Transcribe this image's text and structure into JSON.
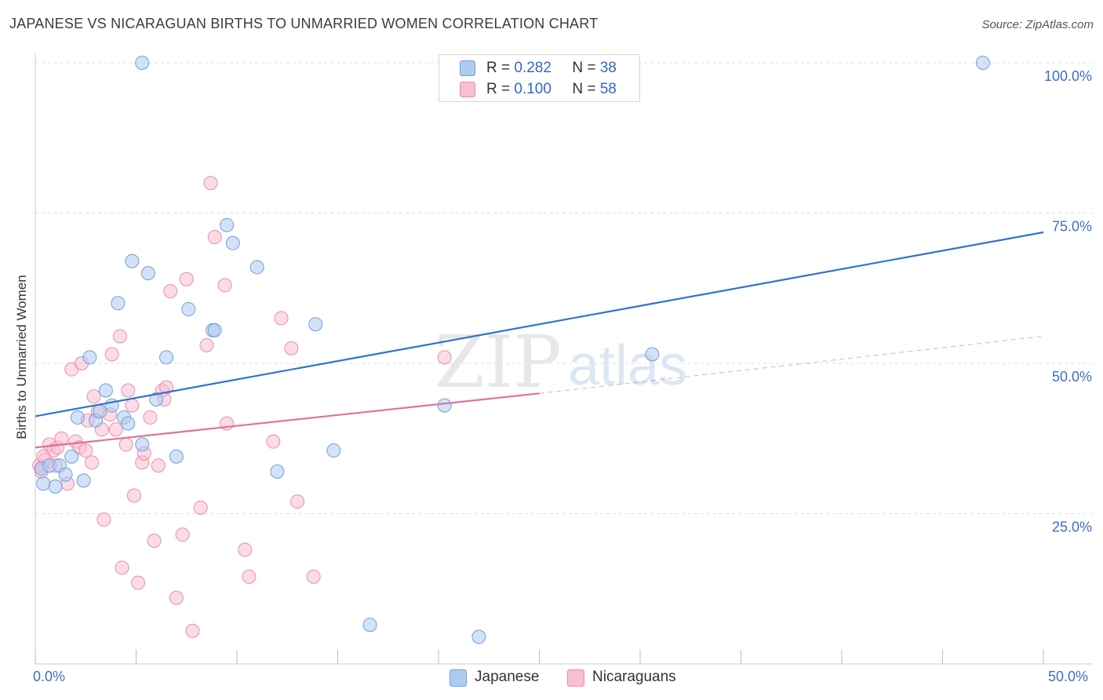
{
  "header": {
    "title": "JAPANESE VS NICARAGUAN BIRTHS TO UNMARRIED WOMEN CORRELATION CHART",
    "source": "Source: ZipAtlas.com"
  },
  "legend": {
    "rows": [
      {
        "r_label": "R =",
        "r_value": "0.282",
        "n_label": "N =",
        "n_value": "38"
      },
      {
        "r_label": "R =",
        "r_value": "0.100",
        "n_label": "N =",
        "n_value": "58"
      }
    ],
    "bottom": [
      "Japanese",
      "Nicaraguans"
    ]
  },
  "colors": {
    "japanese_fill": "#aecbf0",
    "japanese_stroke": "#6f9fdc",
    "japanese_line": "#2f73d0",
    "nicaraguan_fill": "#f7bfd0",
    "nicaraguan_stroke": "#e88fab",
    "nicaraguan_line": "#e0709a",
    "tick_label": "#3d6fc2",
    "grid": "#dddddd"
  },
  "watermark": {
    "zip": "ZIP",
    "atlas": "atlas"
  },
  "chart_data": {
    "type": "scatter",
    "title": "JAPANESE VS NICARAGUAN BIRTHS TO UNMARRIED WOMEN CORRELATION CHART",
    "xlabel": "",
    "ylabel": "Births to Unmarried Women",
    "xlim": [
      0,
      50
    ],
    "ylim": [
      0,
      100
    ],
    "x_tick_labels": [
      "0.0%",
      "50.0%"
    ],
    "y_ticks": [
      25,
      50,
      75,
      100
    ],
    "y_tick_labels": [
      "25.0%",
      "50.0%",
      "75.0%",
      "100.0%"
    ],
    "grid": true,
    "series": [
      {
        "name": "Japanese",
        "R": 0.282,
        "N": 38,
        "trend": {
          "x": [
            0,
            50
          ],
          "y": [
            41.2,
            71.8
          ]
        },
        "points": [
          {
            "x": 0.3,
            "y": 32.5
          },
          {
            "x": 0.4,
            "y": 30.0
          },
          {
            "x": 0.7,
            "y": 33.0
          },
          {
            "x": 1.0,
            "y": 29.5
          },
          {
            "x": 1.2,
            "y": 33.0
          },
          {
            "x": 1.5,
            "y": 31.5
          },
          {
            "x": 1.8,
            "y": 34.5
          },
          {
            "x": 2.1,
            "y": 41.0
          },
          {
            "x": 2.4,
            "y": 30.5
          },
          {
            "x": 2.7,
            "y": 51.0
          },
          {
            "x": 3.0,
            "y": 40.5
          },
          {
            "x": 3.2,
            "y": 42.0
          },
          {
            "x": 3.5,
            "y": 45.5
          },
          {
            "x": 3.8,
            "y": 43.0
          },
          {
            "x": 4.1,
            "y": 60.0
          },
          {
            "x": 4.4,
            "y": 41.0
          },
          {
            "x": 4.6,
            "y": 40.0
          },
          {
            "x": 4.8,
            "y": 67.0
          },
          {
            "x": 5.3,
            "y": 36.5
          },
          {
            "x": 5.6,
            "y": 65.0
          },
          {
            "x": 6.0,
            "y": 44.0
          },
          {
            "x": 6.5,
            "y": 51.0
          },
          {
            "x": 7.0,
            "y": 34.5
          },
          {
            "x": 7.6,
            "y": 59.0
          },
          {
            "x": 8.8,
            "y": 55.5
          },
          {
            "x": 9.5,
            "y": 73.0
          },
          {
            "x": 9.8,
            "y": 70.0
          },
          {
            "x": 11.0,
            "y": 66.0
          },
          {
            "x": 12.0,
            "y": 32.0
          },
          {
            "x": 13.9,
            "y": 56.5
          },
          {
            "x": 14.8,
            "y": 35.5
          },
          {
            "x": 16.6,
            "y": 6.5
          },
          {
            "x": 20.3,
            "y": 43.0
          },
          {
            "x": 22.0,
            "y": 4.5
          },
          {
            "x": 5.3,
            "y": 100.0
          },
          {
            "x": 30.6,
            "y": 51.5
          },
          {
            "x": 47.0,
            "y": 100.0
          },
          {
            "x": 8.9,
            "y": 55.5
          }
        ]
      },
      {
        "name": "Nicaraguans",
        "R": 0.1,
        "N": 58,
        "trend": {
          "x": [
            0,
            25
          ],
          "y": [
            36.0,
            45.0
          ]
        },
        "trend_extension": {
          "x": [
            25,
            50
          ],
          "y": [
            45.0,
            54.5
          ]
        },
        "points": [
          {
            "x": 0.2,
            "y": 33.0
          },
          {
            "x": 0.3,
            "y": 32.0
          },
          {
            "x": 0.5,
            "y": 34.0
          },
          {
            "x": 0.7,
            "y": 36.5
          },
          {
            "x": 0.9,
            "y": 35.5
          },
          {
            "x": 1.1,
            "y": 36.0
          },
          {
            "x": 1.3,
            "y": 37.5
          },
          {
            "x": 1.6,
            "y": 30.0
          },
          {
            "x": 1.8,
            "y": 49.0
          },
          {
            "x": 2.0,
            "y": 37.0
          },
          {
            "x": 2.2,
            "y": 36.0
          },
          {
            "x": 2.3,
            "y": 50.0
          },
          {
            "x": 2.5,
            "y": 35.5
          },
          {
            "x": 2.8,
            "y": 33.5
          },
          {
            "x": 2.9,
            "y": 44.5
          },
          {
            "x": 3.1,
            "y": 42.0
          },
          {
            "x": 3.3,
            "y": 39.0
          },
          {
            "x": 3.4,
            "y": 24.0
          },
          {
            "x": 3.7,
            "y": 41.5
          },
          {
            "x": 3.8,
            "y": 51.5
          },
          {
            "x": 4.0,
            "y": 39.0
          },
          {
            "x": 4.2,
            "y": 54.5
          },
          {
            "x": 4.3,
            "y": 16.0
          },
          {
            "x": 4.5,
            "y": 36.5
          },
          {
            "x": 4.6,
            "y": 45.5
          },
          {
            "x": 4.8,
            "y": 43.0
          },
          {
            "x": 4.9,
            "y": 28.0
          },
          {
            "x": 5.1,
            "y": 13.5
          },
          {
            "x": 5.3,
            "y": 33.5
          },
          {
            "x": 5.4,
            "y": 35.0
          },
          {
            "x": 5.7,
            "y": 41.0
          },
          {
            "x": 5.9,
            "y": 20.5
          },
          {
            "x": 6.1,
            "y": 33.0
          },
          {
            "x": 6.3,
            "y": 45.5
          },
          {
            "x": 6.5,
            "y": 46.0
          },
          {
            "x": 6.7,
            "y": 62.0
          },
          {
            "x": 7.0,
            "y": 11.0
          },
          {
            "x": 7.3,
            "y": 21.5
          },
          {
            "x": 7.5,
            "y": 64.0
          },
          {
            "x": 7.8,
            "y": 5.5
          },
          {
            "x": 8.2,
            "y": 26.0
          },
          {
            "x": 8.5,
            "y": 53.0
          },
          {
            "x": 8.7,
            "y": 80.0
          },
          {
            "x": 8.9,
            "y": 71.0
          },
          {
            "x": 9.4,
            "y": 63.0
          },
          {
            "x": 9.5,
            "y": 40.0
          },
          {
            "x": 10.4,
            "y": 19.0
          },
          {
            "x": 10.6,
            "y": 14.5
          },
          {
            "x": 11.8,
            "y": 37.0
          },
          {
            "x": 12.2,
            "y": 57.5
          },
          {
            "x": 12.7,
            "y": 52.5
          },
          {
            "x": 13.0,
            "y": 27.0
          },
          {
            "x": 13.8,
            "y": 14.5
          },
          {
            "x": 20.3,
            "y": 51.0
          },
          {
            "x": 0.4,
            "y": 34.5
          },
          {
            "x": 1.0,
            "y": 33.0
          },
          {
            "x": 2.6,
            "y": 40.5
          },
          {
            "x": 6.4,
            "y": 44.0
          }
        ]
      }
    ]
  }
}
